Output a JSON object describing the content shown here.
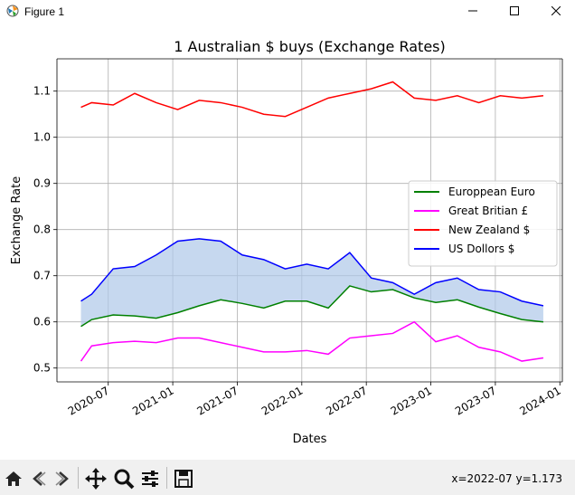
{
  "window": {
    "title": "Figure 1",
    "minimize_icon": "minimize-icon",
    "maximize_icon": "maximize-icon",
    "close_icon": "close-icon"
  },
  "toolbar": {
    "buttons": [
      "home-icon",
      "back-arrow-icon",
      "forward-arrow-icon",
      "pan-icon",
      "zoom-icon",
      "configure-subplots-icon",
      "save-icon"
    ],
    "coordinates": "x=2022-07 y=1.173"
  },
  "chart_data": {
    "type": "line",
    "title": "1 Australian $ buys (Exchange Rates)",
    "xlabel": "Dates",
    "ylabel": "Exchange Rate",
    "x_ticks": [
      "2020-07",
      "2021-01",
      "2021-07",
      "2022-01",
      "2022-07",
      "2023-01",
      "2023-07",
      "2024-01"
    ],
    "y_ticks": [
      "0.5",
      "0.6",
      "0.7",
      "0.8",
      "0.9",
      "1.0",
      "1.1"
    ],
    "xlim": [
      "2020-02-08",
      "2024-01-08"
    ],
    "ylim": [
      0.47,
      1.17
    ],
    "grid": true,
    "legend_position": "center-right",
    "fill_between": {
      "upper": "US Dollors $",
      "lower": "Europpean Euro",
      "color": "#aec7e8"
    },
    "x": [
      "2020-04",
      "2020-05",
      "2020-07",
      "2020-09",
      "2020-11",
      "2021-01",
      "2021-03",
      "2021-05",
      "2021-07",
      "2021-09",
      "2021-11",
      "2022-01",
      "2022-03",
      "2022-05",
      "2022-07",
      "2022-09",
      "2022-11",
      "2023-01",
      "2023-03",
      "2023-05",
      "2023-07",
      "2023-09",
      "2023-11"
    ],
    "series": [
      {
        "name": "Europpean Euro",
        "color": "#008000",
        "values": [
          0.59,
          0.605,
          0.615,
          0.613,
          0.608,
          0.62,
          0.635,
          0.648,
          0.64,
          0.63,
          0.645,
          0.645,
          0.63,
          0.678,
          0.665,
          0.67,
          0.652,
          0.642,
          0.648,
          0.632,
          0.618,
          0.605,
          0.6
        ]
      },
      {
        "name": "Great Britian  £",
        "color": "#ff00ff",
        "values": [
          0.515,
          0.548,
          0.555,
          0.558,
          0.555,
          0.565,
          0.565,
          0.555,
          0.545,
          0.535,
          0.535,
          0.538,
          0.53,
          0.565,
          0.57,
          0.575,
          0.6,
          0.557,
          0.57,
          0.545,
          0.535,
          0.515,
          0.522
        ]
      },
      {
        "name": "New Zealand $",
        "color": "#ff0000",
        "values": [
          1.065,
          1.075,
          1.07,
          1.095,
          1.075,
          1.06,
          1.08,
          1.075,
          1.065,
          1.05,
          1.045,
          1.065,
          1.085,
          1.095,
          1.105,
          1.12,
          1.085,
          1.08,
          1.09,
          1.075,
          1.09,
          1.085,
          1.09
        ]
      },
      {
        "name": "US Dollors $",
        "color": "#0000ff",
        "values": [
          0.645,
          0.66,
          0.715,
          0.72,
          0.745,
          0.775,
          0.78,
          0.775,
          0.745,
          0.735,
          0.715,
          0.725,
          0.715,
          0.75,
          0.695,
          0.685,
          0.66,
          0.685,
          0.695,
          0.67,
          0.665,
          0.645,
          0.635
        ]
      }
    ]
  }
}
